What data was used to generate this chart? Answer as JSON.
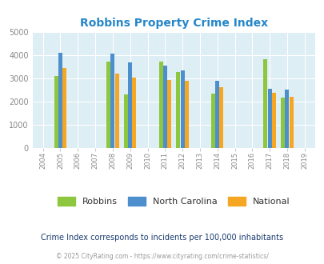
{
  "title": "Robbins Property Crime Index",
  "plot_years": [
    2005,
    2008,
    2009,
    2011,
    2012,
    2014,
    2017,
    2018
  ],
  "robbins": [
    3100,
    3700,
    2300,
    3700,
    3250,
    2350,
    3800,
    2150
  ],
  "north_carolina": [
    4080,
    4050,
    3670,
    3550,
    3350,
    2870,
    2550,
    2520
  ],
  "national": [
    3450,
    3200,
    3030,
    2920,
    2880,
    2600,
    2370,
    2200
  ],
  "bar_color_robbins": "#8dc63f",
  "bar_color_nc": "#4d8fcc",
  "bar_color_national": "#f5a623",
  "bg_color": "#ddeef5",
  "ylim": [
    0,
    5000
  ],
  "yticks": [
    0,
    1000,
    2000,
    3000,
    4000,
    5000
  ],
  "all_years": [
    2004,
    2005,
    2006,
    2007,
    2008,
    2009,
    2010,
    2011,
    2012,
    2013,
    2014,
    2015,
    2016,
    2017,
    2018,
    2019
  ],
  "legend_labels": [
    "Robbins",
    "North Carolina",
    "National"
  ],
  "footnote1": "Crime Index corresponds to incidents per 100,000 inhabitants",
  "footnote2": "© 2025 CityRating.com - https://www.cityrating.com/crime-statistics/",
  "title_color": "#2586c8",
  "legend_text_color": "#333333",
  "footnote1_color": "#1a3a6e",
  "footnote2_color": "#999999",
  "bar_width": 0.28
}
